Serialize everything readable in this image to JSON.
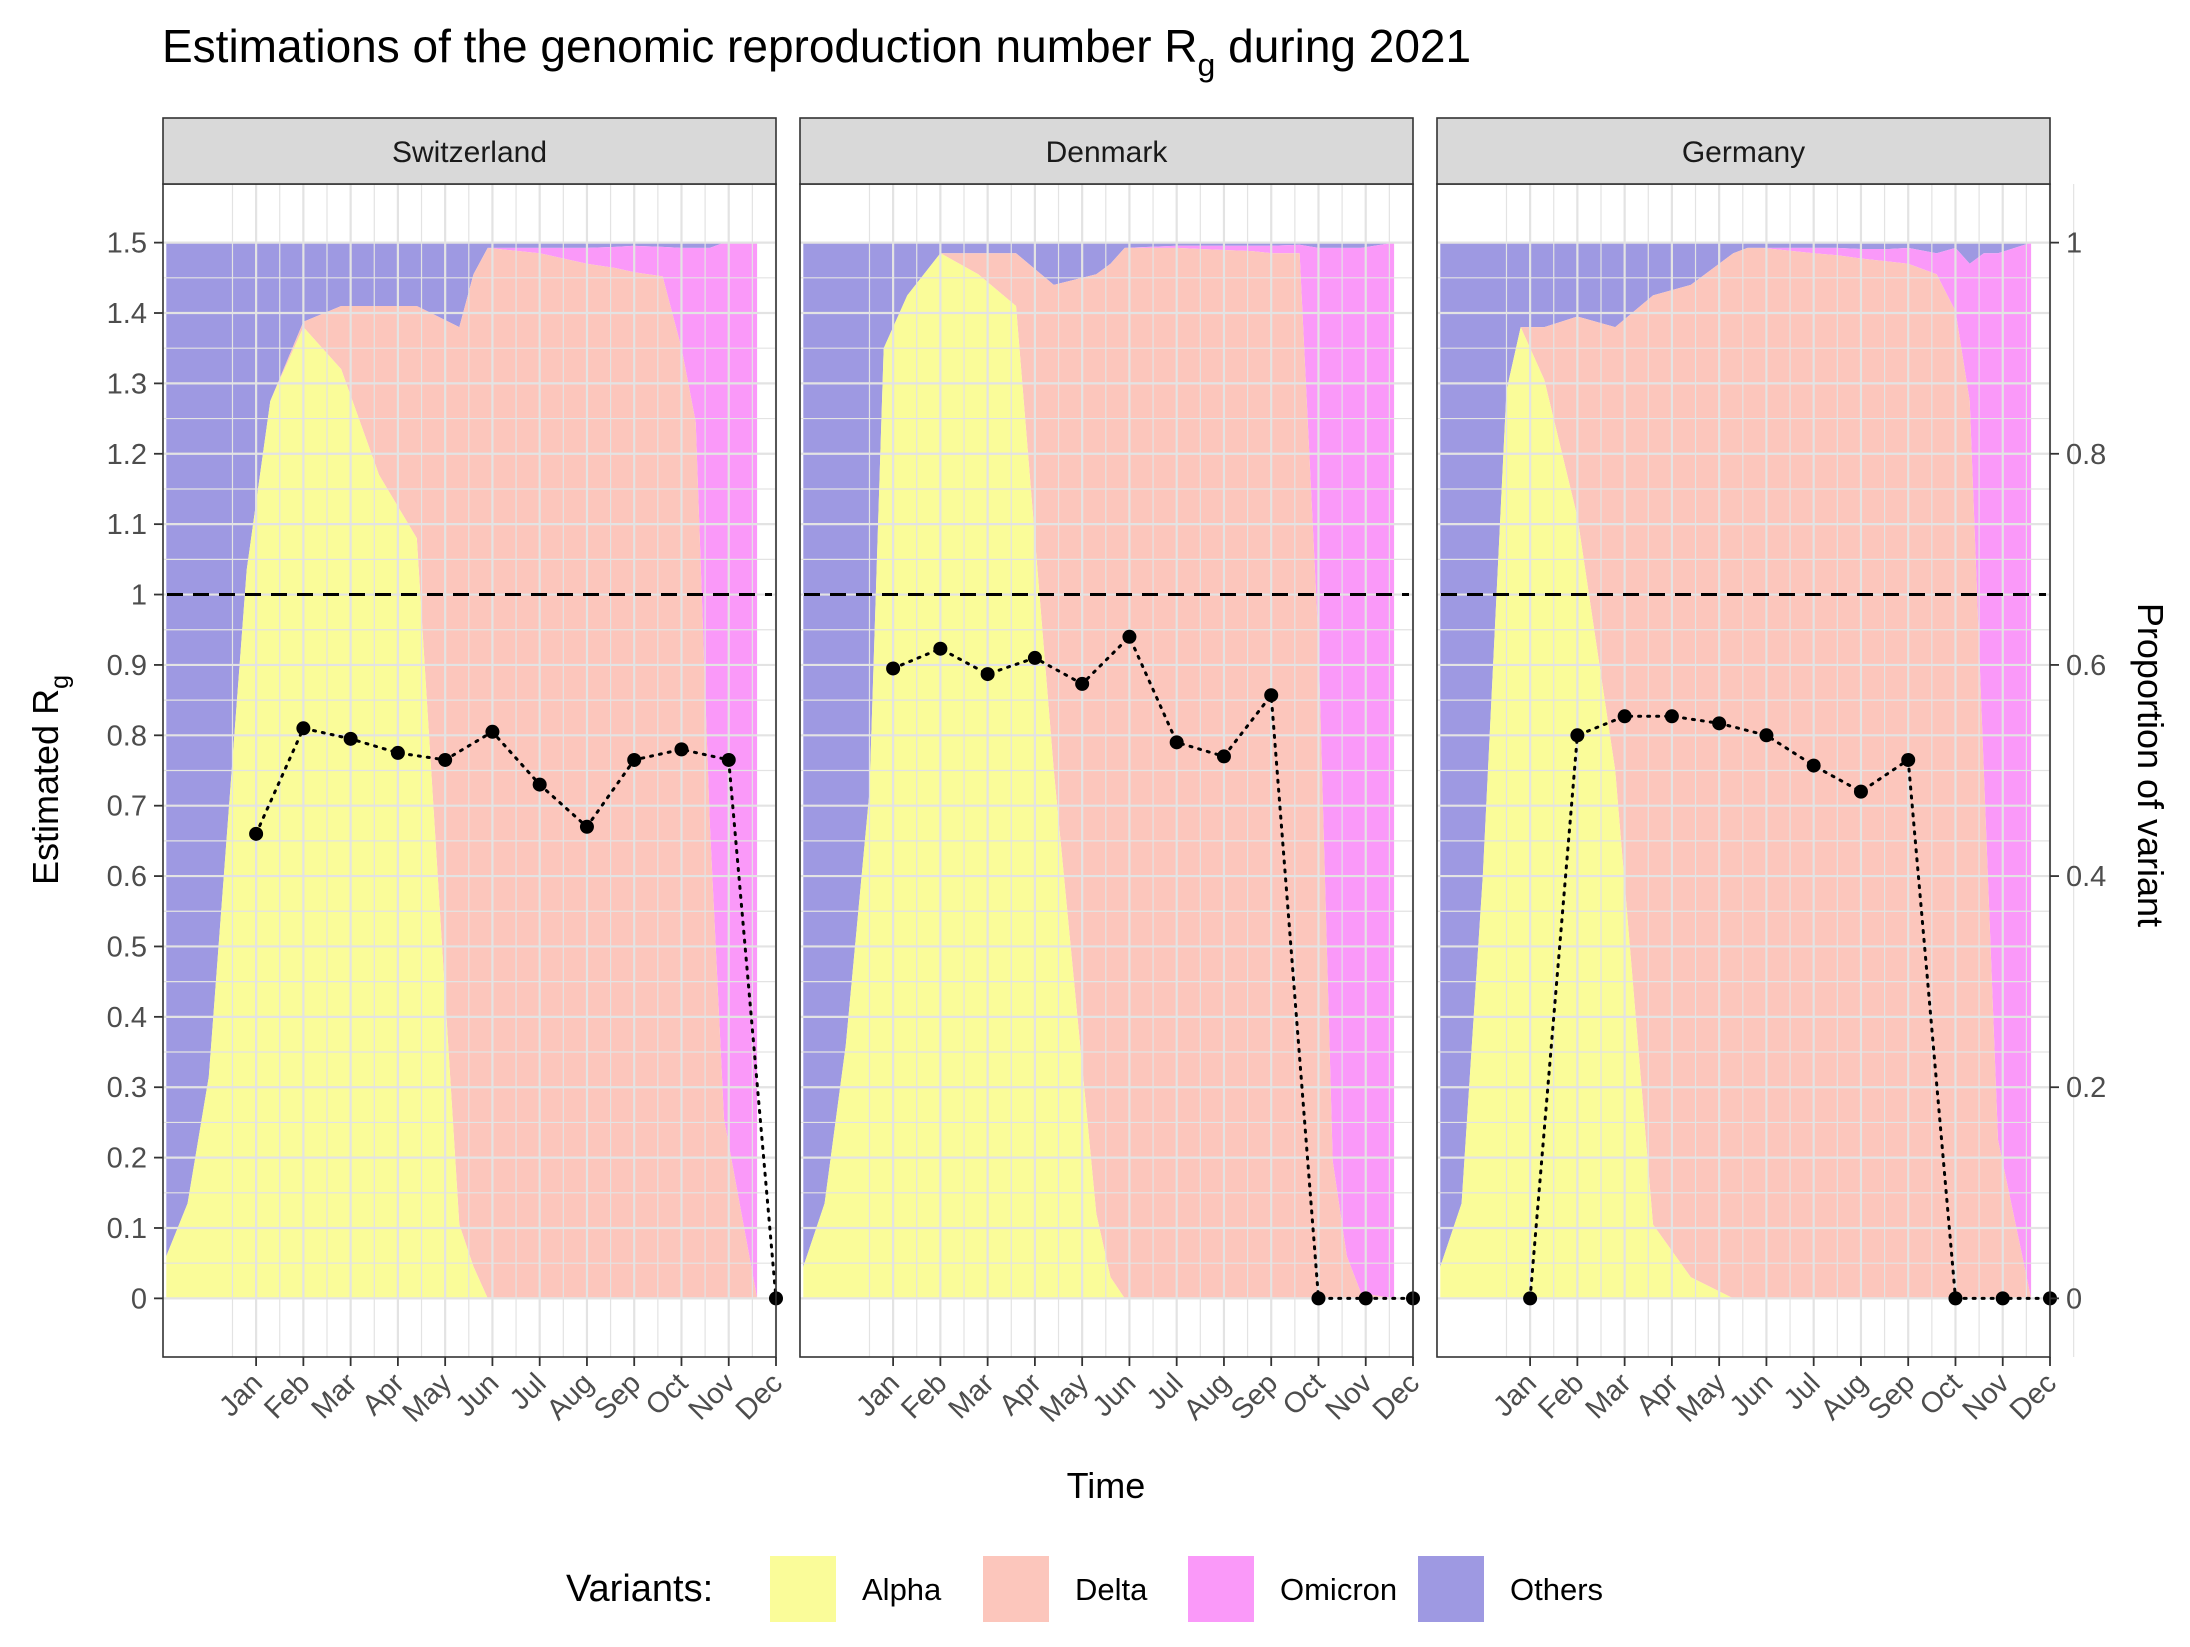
{
  "chart_data": {
    "type": "area",
    "title_main": "Estimations of the genomic reproduction number R",
    "title_sub": "g",
    "title_tail": " during 2021",
    "ylabel_main": "Estimated R",
    "ylabel_sub": "g",
    "y2label": "Proportion of variant",
    "xlabel": "Time",
    "legend_title": "Variants:",
    "legend_position": "bottom",
    "grid": true,
    "ylim": [
      0,
      1.5
    ],
    "y2lim": [
      0,
      1
    ],
    "reference_line": 1,
    "y_ticks": [
      "0",
      "0.1",
      "0.2",
      "0.3",
      "0.4",
      "0.5",
      "0.6",
      "0.7",
      "0.8",
      "0.9",
      "1",
      "1.1",
      "1.2",
      "1.3",
      "1.4",
      "1.5"
    ],
    "y2_ticks": [
      "0",
      "0.2",
      "0.4",
      "0.6",
      "0.8",
      "1"
    ],
    "months": [
      "Jan",
      "Feb",
      "Mar",
      "Apr",
      "May",
      "Jun",
      "Jul",
      "Aug",
      "Sep",
      "Oct",
      "Nov",
      "Dec"
    ],
    "variants": [
      {
        "name": "Alpha",
        "color": "#FAFC99"
      },
      {
        "name": "Delta",
        "color": "#FCC6BC"
      },
      {
        "name": "Omicron",
        "color": "#FA99F9"
      },
      {
        "name": "Others",
        "color": "#9E99E2"
      }
    ],
    "proportion_t": [
      -0.9,
      -0.45,
      0,
      0.5,
      0.8,
      1.3,
      2,
      2.8,
      3.6,
      4.4,
      5.3,
      5.6,
      5.9,
      7,
      7.5,
      8,
      8.6,
      9,
      9.6,
      10,
      10.3,
      10.6,
      10.9,
      11.6
    ],
    "panels": [
      {
        "country": "Switzerland",
        "rg_months": [
          1,
          2,
          3,
          4,
          5,
          6,
          7,
          8,
          9,
          10,
          11,
          12
        ],
        "rg_values": [
          0.66,
          0.81,
          0.795,
          0.775,
          0.765,
          0.805,
          0.73,
          0.67,
          0.765,
          0.78,
          0.765,
          0
        ],
        "alpha": [
          0.04,
          0.09,
          0.21,
          0.51,
          0.69,
          0.85,
          0.92,
          0.88,
          0.78,
          0.72,
          0.07,
          0.03,
          0,
          0,
          0,
          0,
          0,
          0,
          0,
          0,
          0,
          0,
          0,
          0
        ],
        "delta": [
          0,
          0,
          0,
          0,
          0,
          0,
          0.005,
          0.06,
          0.16,
          0.22,
          0.85,
          0.94,
          0.995,
          0.99,
          0.985,
          0.98,
          0.976,
          0.972,
          0.968,
          0.9,
          0.83,
          0.45,
          0.17,
          0
        ],
        "omicron": [
          0,
          0,
          0,
          0,
          0,
          0,
          0,
          0,
          0,
          0,
          0,
          0,
          0,
          0.005,
          0.01,
          0.015,
          0.02,
          0.025,
          0.028,
          0.095,
          0.165,
          0.545,
          0.83,
          1.0
        ]
      },
      {
        "country": "Denmark",
        "rg_months": [
          1,
          2,
          3,
          4,
          5,
          6,
          7,
          8,
          9,
          10,
          11,
          12
        ],
        "rg_values": [
          0.895,
          0.923,
          0.887,
          0.91,
          0.873,
          0.94,
          0.79,
          0.77,
          0.857,
          0,
          0,
          0
        ],
        "alpha": [
          0.03,
          0.09,
          0.24,
          0.48,
          0.9,
          0.95,
          0.99,
          0.97,
          0.94,
          0.5,
          0.08,
          0.02,
          0,
          0,
          0,
          0,
          0,
          0,
          0,
          0,
          0,
          0,
          0,
          0
        ],
        "delta": [
          0,
          0,
          0,
          0,
          0,
          0,
          0,
          0.02,
          0.05,
          0.46,
          0.89,
          0.96,
          0.995,
          0.995,
          0.994,
          0.993,
          0.992,
          0.99,
          0.99,
          0.62,
          0.13,
          0.04,
          0.005,
          0
        ],
        "omicron": [
          0,
          0,
          0,
          0,
          0,
          0,
          0,
          0,
          0,
          0,
          0,
          0,
          0,
          0.002,
          0.003,
          0.004,
          0.005,
          0.007,
          0.008,
          0.375,
          0.865,
          0.955,
          0.99,
          1.0
        ]
      },
      {
        "country": "Germany",
        "rg_months": [
          1,
          2,
          3,
          4,
          5,
          6,
          7,
          8,
          9,
          10,
          11,
          12
        ],
        "rg_values": [
          0,
          0.8,
          0.827,
          0.827,
          0.817,
          0.8,
          0.757,
          0.72,
          0.765,
          0,
          0,
          0
        ],
        "alpha": [
          0.03,
          0.09,
          0.4,
          0.86,
          0.92,
          0.87,
          0.74,
          0.5,
          0.07,
          0.02,
          0,
          0,
          0,
          0,
          0,
          0,
          0,
          0,
          0,
          0,
          0,
          0,
          0,
          0
        ],
        "delta": [
          0,
          0,
          0,
          0,
          0,
          0.05,
          0.19,
          0.42,
          0.88,
          0.94,
          0.99,
          0.995,
          0.995,
          0.99,
          0.988,
          0.985,
          0.982,
          0.98,
          0.97,
          0.935,
          0.85,
          0.5,
          0.15,
          0
        ],
        "omicron": [
          0,
          0,
          0,
          0,
          0,
          0,
          0,
          0,
          0,
          0,
          0,
          0,
          0,
          0.005,
          0.007,
          0.009,
          0.012,
          0.015,
          0.02,
          0.06,
          0.13,
          0.49,
          0.84,
          1.0
        ]
      }
    ]
  }
}
